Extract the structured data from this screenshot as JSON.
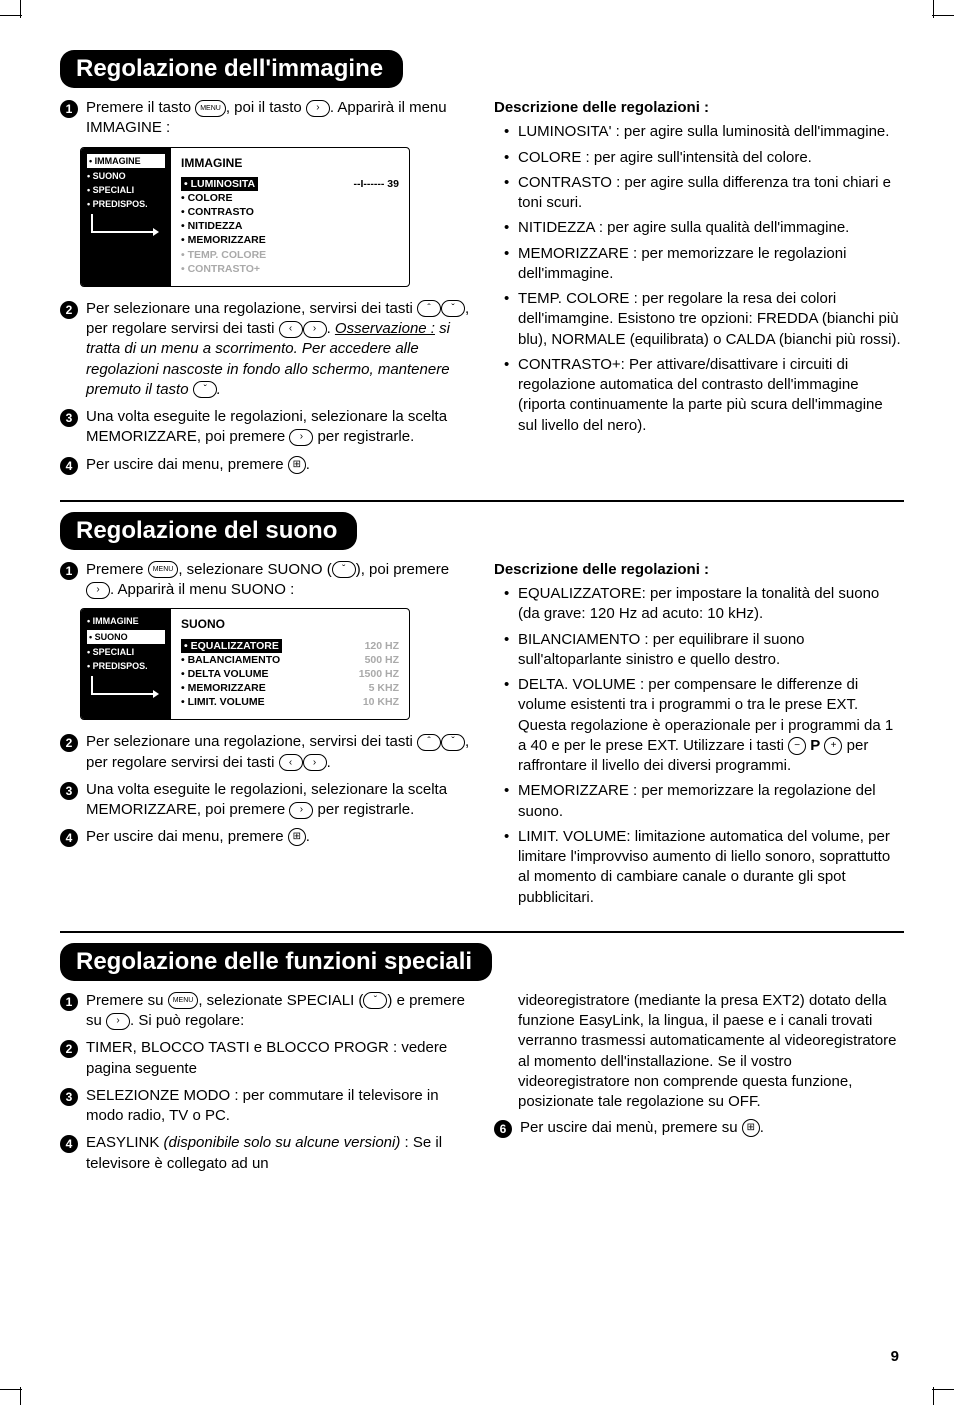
{
  "page_number": "9",
  "sections": [
    {
      "title": "Regolazione dell'immagine",
      "left_steps": [
        {
          "n": "1",
          "html": "Premere il tasto {MENU}, poi il tasto {RIGHT}. Apparirà il menu IMMAGINE :"
        },
        {
          "tvbox": {
            "side": [
              "• IMMAGINE",
              "• SUONO",
              "• SPECIALI",
              "• PREDISPOS."
            ],
            "side_hl_index": 0,
            "title": "IMMAGINE",
            "rows": [
              {
                "hl": true,
                "label": "• LUMINOSITA",
                "val": "--I------ 39"
              },
              {
                "label": "• COLORE"
              },
              {
                "label": "• CONTRASTO"
              },
              {
                "label": "• NITIDEZZA"
              },
              {
                "label": "• MEMORIZZARE"
              },
              {
                "grey": true,
                "label": "• TEMP. COLORE"
              },
              {
                "grey": true,
                "label": "• CONTRASTO+"
              }
            ]
          }
        },
        {
          "n": "2",
          "html": "Per selezionare una regolazione, servirsi dei tasti {UP}{DOWN}, per regolare servirsi dei tasti {LEFT}{RIGHT}. <span class='italic'><span class='under'>Osservazione :</span> si tratta di un menu a scorrimento. Per accedere alle regolazioni nascoste in fondo allo schermo, mantenere premuto il tasto {DOWN}.</span>"
        },
        {
          "n": "3",
          "html": "Una volta eseguite le regolazioni, selezionare la scelta MEMORIZZARE, poi premere {RIGHT} per registrarle."
        },
        {
          "n": "4",
          "html": "Per uscire dai menu, premere {EXIT}."
        }
      ],
      "right_title": "Descrizione delle regolazioni :",
      "right_bullets": [
        "LUMINOSITA' : per agire sulla luminosità dell'immagine.",
        "COLORE : per agire sull'intensità del colore.",
        "CONTRASTO : per agire sulla differenza tra toni chiari e toni scuri.",
        "NITIDEZZA : per agire sulla qualità dell'immagine.",
        "MEMORIZZARE : per memorizzare le regolazioni dell'immagine.",
        "TEMP. COLORE : per regolare la resa dei colori dell'imamgine. Esistono tre opzioni: FREDDA (bianchi più blu), NORMALE (equilibrata) o CALDA (bianchi più rossi).",
        "CONTRASTO+: Per attivare/disattivare i circuiti di regolazione automatica del contrasto dell'immagine (riporta continuamente la parte più scura dell'immagine sul livello del nero)."
      ]
    },
    {
      "title": "Regolazione del suono",
      "left_steps": [
        {
          "n": "1",
          "html": "Premere {MENU}, selezionare SUONO ({DOWN}), poi premere {RIGHT}. Apparirà il menu SUONO :"
        },
        {
          "tvbox": {
            "side": [
              "• IMMAGINE",
              "• SUONO",
              "• SPECIALI",
              "• PREDISPOS."
            ],
            "side_hl_index": 1,
            "title": "SUONO",
            "rows": [
              {
                "hl": true,
                "label": "• EQUALIZZATORE",
                "val": "120 HZ",
                "valgrey": true
              },
              {
                "label": "• BALANCIAMENTO",
                "val": "500 HZ",
                "valgrey": true
              },
              {
                "label": "• DELTA VOLUME",
                "val": "1500 HZ",
                "valgrey": true
              },
              {
                "label": "• MEMORIZZARE",
                "val": "5 KHZ",
                "valgrey": true
              },
              {
                "label": "• LIMIT. VOLUME",
                "val": "10 KHZ",
                "valgrey": true
              }
            ]
          }
        },
        {
          "n": "2",
          "html": "Per selezionare una regolazione, servirsi dei tasti {UP}{DOWN}, per regolare servirsi dei tasti {LEFT}{RIGHT}."
        },
        {
          "n": "3",
          "html": "Una volta eseguite le regolazioni, selezionare la scelta MEMORIZZARE, poi premere {RIGHT} per registrarle."
        },
        {
          "n": "4",
          "html": "Per uscire dai menu, premere {EXIT}."
        }
      ],
      "right_title": "Descrizione delle regolazioni :",
      "right_bullets": [
        "EQUALIZZATORE: per impostare la tonalità del suono (da grave: 120 Hz ad acuto: 10 kHz).",
        "BILANCIAMENTO : per equilibrare il suono sull'altoparlante sinistro e quello destro.",
        "DELTA. VOLUME : per compensare le differenze di volume esistenti tra i programmi o tra le prese EXT. Questa regolazione è operazionale per i programmi da 1 a 40 e per le prese EXT. Utilizzare i tasti {MINUS} <b>P</b> {PLUS} per raffrontare il livello dei diversi programmi.",
        "MEMORIZZARE : per memorizzare la regolazione del suono.",
        "LIMIT. VOLUME: limitazione automatica del volume, per limitare l'improvviso aumento di liello sonoro, soprattutto al momento di cambiare canale o durante gli spot pubblicitari."
      ]
    },
    {
      "title": "Regolazione delle funzioni speciali",
      "left_steps": [
        {
          "n": "1",
          "html": "Premere su {MENU}, selezionate SPECIALI ({DOWN}) e premere su {RIGHT}. Si può regolare:"
        },
        {
          "n": "2",
          "html": "TIMER, BLOCCO TASTI e BLOCCO PROGR : vedere pagina seguente"
        },
        {
          "n": "3",
          "html": "SELEZIONZE MODO : per commutare il televisore in modo radio, TV o PC."
        },
        {
          "n": "4",
          "html": "EASYLINK <span class='italic'>(disponibile solo su alcune versioni)</span> : Se il televisore è collegato ad un"
        }
      ],
      "right_continuation": "videoregistratore (mediante la presa EXT2) dotato della funzione EasyLink, la lingua, il paese e i canali trovati verranno trasmessi automaticamente al videoregistratore al momento dell'installazione. Se il vostro videoregistratore non comprende questa funzione, posizionate tale regolazione su OFF.",
      "right_step": {
        "n": "6",
        "html": "Per uscire dai menù, premere su {EXIT}."
      }
    }
  ],
  "keys": {
    "MENU": "MENU",
    "RIGHT": "›",
    "LEFT": "‹",
    "UP": "ˆ",
    "DOWN": "ˇ",
    "EXIT": "⊞",
    "MINUS": "−",
    "PLUS": "+"
  }
}
